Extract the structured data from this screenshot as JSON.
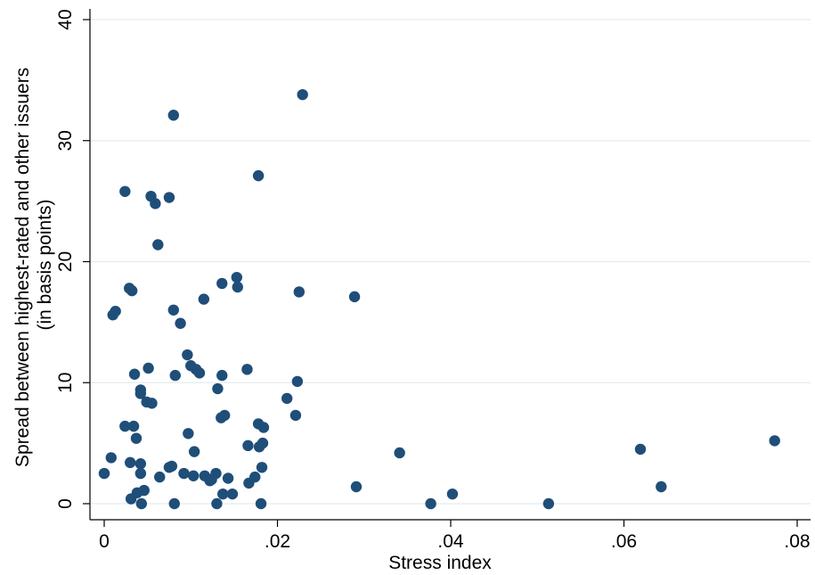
{
  "chart_data": {
    "type": "scatter",
    "xlabel": "Stress index",
    "ylabel_lines": [
      "Spread between highest-rated and other issuers",
      "(in basis points)"
    ],
    "xlim": [
      0,
      0.08
    ],
    "ylim": [
      0,
      40
    ],
    "x_ticks": [
      0,
      0.02,
      0.04,
      0.06,
      0.08
    ],
    "x_tick_labels": [
      "0",
      ".02",
      ".04",
      ".06",
      ".08"
    ],
    "y_ticks": [
      0,
      10,
      20,
      30,
      40
    ],
    "y_tick_labels": [
      "0",
      "10",
      "20",
      "30",
      "40"
    ],
    "grid": "horizontal",
    "marker_color": "#1f4e79",
    "grid_color": "#e4ecef",
    "points": [
      {
        "x": 0.0,
        "y": 2.5
      },
      {
        "x": 0.0008,
        "y": 3.8
      },
      {
        "x": 0.001,
        "y": 15.6
      },
      {
        "x": 0.0013,
        "y": 15.9
      },
      {
        "x": 0.0024,
        "y": 25.8
      },
      {
        "x": 0.0024,
        "y": 6.4
      },
      {
        "x": 0.0029,
        "y": 17.8
      },
      {
        "x": 0.003,
        "y": 3.4
      },
      {
        "x": 0.0031,
        "y": 0.4
      },
      {
        "x": 0.0032,
        "y": 17.6
      },
      {
        "x": 0.0034,
        "y": 6.4
      },
      {
        "x": 0.0035,
        "y": 10.7
      },
      {
        "x": 0.0037,
        "y": 5.4
      },
      {
        "x": 0.0038,
        "y": 0.9
      },
      {
        "x": 0.0042,
        "y": 9.4
      },
      {
        "x": 0.0042,
        "y": 9.1
      },
      {
        "x": 0.0042,
        "y": 3.3
      },
      {
        "x": 0.0042,
        "y": 2.5
      },
      {
        "x": 0.0043,
        "y": 0.0
      },
      {
        "x": 0.0046,
        "y": 1.1
      },
      {
        "x": 0.0049,
        "y": 8.4
      },
      {
        "x": 0.0051,
        "y": 11.2
      },
      {
        "x": 0.0054,
        "y": 25.4
      },
      {
        "x": 0.0055,
        "y": 8.3
      },
      {
        "x": 0.0059,
        "y": 24.8
      },
      {
        "x": 0.0062,
        "y": 21.4
      },
      {
        "x": 0.0064,
        "y": 2.2
      },
      {
        "x": 0.0075,
        "y": 25.3
      },
      {
        "x": 0.0075,
        "y": 3.0
      },
      {
        "x": 0.0078,
        "y": 3.1
      },
      {
        "x": 0.008,
        "y": 32.1
      },
      {
        "x": 0.008,
        "y": 16.0
      },
      {
        "x": 0.0081,
        "y": 0.0
      },
      {
        "x": 0.0082,
        "y": 10.6
      },
      {
        "x": 0.0088,
        "y": 14.9
      },
      {
        "x": 0.0092,
        "y": 2.5
      },
      {
        "x": 0.0096,
        "y": 12.3
      },
      {
        "x": 0.0097,
        "y": 5.8
      },
      {
        "x": 0.01,
        "y": 11.4
      },
      {
        "x": 0.0103,
        "y": 2.3
      },
      {
        "x": 0.0104,
        "y": 4.3
      },
      {
        "x": 0.0106,
        "y": 11.1
      },
      {
        "x": 0.011,
        "y": 10.8
      },
      {
        "x": 0.0115,
        "y": 16.9
      },
      {
        "x": 0.0116,
        "y": 2.3
      },
      {
        "x": 0.0122,
        "y": 1.9
      },
      {
        "x": 0.0124,
        "y": 2.0
      },
      {
        "x": 0.0129,
        "y": 2.5
      },
      {
        "x": 0.013,
        "y": 0.0
      },
      {
        "x": 0.0131,
        "y": 9.5
      },
      {
        "x": 0.0135,
        "y": 7.1
      },
      {
        "x": 0.0136,
        "y": 18.2
      },
      {
        "x": 0.0136,
        "y": 10.6
      },
      {
        "x": 0.0137,
        "y": 0.8
      },
      {
        "x": 0.0139,
        "y": 7.3
      },
      {
        "x": 0.0143,
        "y": 2.1
      },
      {
        "x": 0.0148,
        "y": 0.8
      },
      {
        "x": 0.0153,
        "y": 18.7
      },
      {
        "x": 0.0154,
        "y": 17.9
      },
      {
        "x": 0.0165,
        "y": 11.1
      },
      {
        "x": 0.0166,
        "y": 4.8
      },
      {
        "x": 0.0167,
        "y": 1.7
      },
      {
        "x": 0.0174,
        "y": 2.2
      },
      {
        "x": 0.0178,
        "y": 27.1
      },
      {
        "x": 0.0178,
        "y": 6.6
      },
      {
        "x": 0.0179,
        "y": 4.7
      },
      {
        "x": 0.0181,
        "y": 0.0
      },
      {
        "x": 0.0182,
        "y": 3.0
      },
      {
        "x": 0.0183,
        "y": 5.0
      },
      {
        "x": 0.0184,
        "y": 6.3
      },
      {
        "x": 0.0211,
        "y": 8.7
      },
      {
        "x": 0.0221,
        "y": 7.3
      },
      {
        "x": 0.0223,
        "y": 10.1
      },
      {
        "x": 0.0225,
        "y": 17.5
      },
      {
        "x": 0.0229,
        "y": 33.8
      },
      {
        "x": 0.0289,
        "y": 17.1
      },
      {
        "x": 0.0291,
        "y": 1.4
      },
      {
        "x": 0.0341,
        "y": 4.2
      },
      {
        "x": 0.0377,
        "y": 0.0
      },
      {
        "x": 0.0402,
        "y": 0.8
      },
      {
        "x": 0.0513,
        "y": 0.0
      },
      {
        "x": 0.0619,
        "y": 4.5
      },
      {
        "x": 0.0643,
        "y": 1.4
      },
      {
        "x": 0.0774,
        "y": 5.2
      }
    ]
  }
}
